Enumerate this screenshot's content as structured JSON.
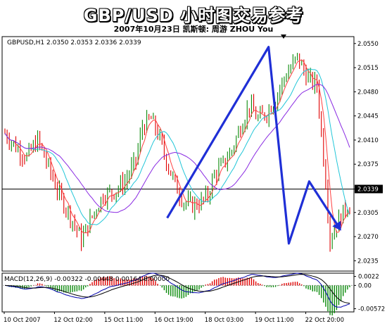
{
  "header": {
    "title": "GBP/USD 小时图交易参考",
    "subtitle": "2007年10月23日  凯斯顿: 周游 ZHOU You"
  },
  "chart_data": {
    "type": "candlestick",
    "info_label": "GBPUSD,H1 2.0350 2.0353 2.0336 2.0339",
    "price_axis_ticks": [
      "2.0550",
      "2.0515",
      "2.0480",
      "2.0445",
      "2.0410",
      "2.0375",
      "2.0339",
      "2.0305",
      "2.0270",
      "2.0235"
    ],
    "current_price": 2.0339,
    "current_price_label": "2.0339",
    "ylim": [
      2.022,
      2.056
    ],
    "x_labels": [
      "10 Oct 2007",
      "12 Oct 02:00",
      "15 Oct 11:00",
      "16 Oct 19:00",
      "18 Oct 03:00",
      "19 Oct 11:00",
      "22 Oct 20:00"
    ],
    "macd": {
      "label": "MACD(12,26,9) -0.00322 -0.00448 0.00164 0.00000",
      "axis_ticks": [
        "0.0022",
        "0.00",
        "-0.00572"
      ],
      "ylim": [
        -0.0065,
        0.003
      ]
    },
    "price_path": [
      [
        0,
        2.042
      ],
      [
        5,
        2.04
      ],
      [
        10,
        2.0385
      ],
      [
        15,
        2.041
      ],
      [
        20,
        2.037
      ],
      [
        25,
        2.033
      ],
      [
        30,
        2.03
      ],
      [
        35,
        2.0265
      ],
      [
        40,
        2.03
      ],
      [
        45,
        2.033
      ],
      [
        50,
        2.0335
      ],
      [
        55,
        2.035
      ],
      [
        60,
        2.038
      ],
      [
        63,
        2.043
      ],
      [
        67,
        2.044
      ],
      [
        70,
        2.042
      ],
      [
        74,
        2.038
      ],
      [
        78,
        2.0345
      ],
      [
        82,
        2.032
      ],
      [
        86,
        2.0315
      ],
      [
        90,
        2.032
      ],
      [
        93,
        2.033
      ],
      [
        96,
        2.036
      ],
      [
        100,
        2.0375
      ],
      [
        104,
        2.0395
      ],
      [
        108,
        2.043
      ],
      [
        112,
        2.046
      ],
      [
        116,
        2.044
      ],
      [
        120,
        2.045
      ],
      [
        124,
        2.047
      ],
      [
        128,
        2.05
      ],
      [
        132,
        2.052
      ],
      [
        134,
        2.053
      ],
      [
        137,
        2.051
      ],
      [
        140,
        2.0495
      ],
      [
        143,
        2.049
      ],
      [
        145,
        2.042
      ],
      [
        147,
        2.035
      ],
      [
        149,
        2.0265
      ],
      [
        151,
        2.028
      ],
      [
        154,
        2.03
      ],
      [
        157,
        2.0315
      ],
      [
        158,
        2.0312
      ]
    ],
    "annotation_arrow": {
      "points": [
        [
          16,
          2.0297
        ],
        [
          26,
          2.0545
        ],
        [
          28,
          2.026
        ],
        [
          30,
          2.035
        ],
        [
          33,
          2.0282
        ]
      ],
      "color": "#1f2fd6"
    },
    "colors": {
      "bull": "#0a8a0a",
      "bear": "#e00000",
      "ma_fast": "#ff4040",
      "ma_mid": "#21c6d8",
      "ma_slow": "#8a2be2",
      "macd_line": "#0000aa",
      "signal_line": "#000000"
    }
  }
}
